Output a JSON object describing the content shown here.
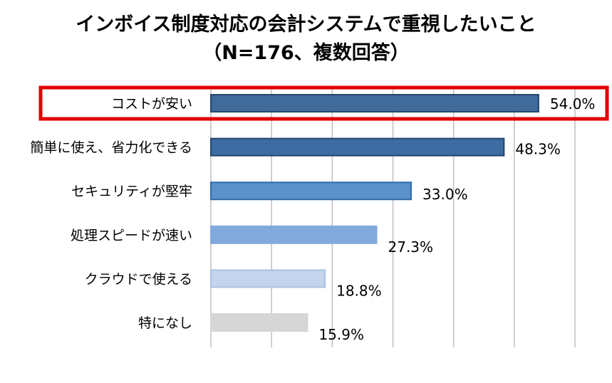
{
  "chart_data": {
    "type": "bar",
    "orientation": "horizontal",
    "title": "インボイス制度対応の会計システムで重視したいこと",
    "subtitle": "（N=176、複数回答）",
    "categories": [
      "コストが安い",
      "簡単に使え、省力化できる",
      "セキュリティが堅牢",
      "処理スピードが速い",
      "クラウドで使える",
      "特になし"
    ],
    "values": [
      54.0,
      48.3,
      33.0,
      27.3,
      18.8,
      15.9
    ],
    "labels": [
      "54.0%",
      "48.3%",
      "33.0%",
      "27.3%",
      "18.8%",
      "15.9%"
    ],
    "xlim": [
      0,
      60
    ],
    "grid": true,
    "highlight_index": 0,
    "colors": {
      "bars": [
        "#3f6a9a",
        "#3d6ca3",
        "#5a91cb",
        "#82a9dc",
        "#c4d4ec",
        "#d6d6d6"
      ],
      "bar_borders": [
        "#24466e",
        "#24466e",
        "#2e6cad",
        "#82a9dc",
        "#a9c1e4",
        "#d6d6d6"
      ],
      "highlight_box": "#e00000",
      "gridline": "#bfbfbf"
    }
  }
}
